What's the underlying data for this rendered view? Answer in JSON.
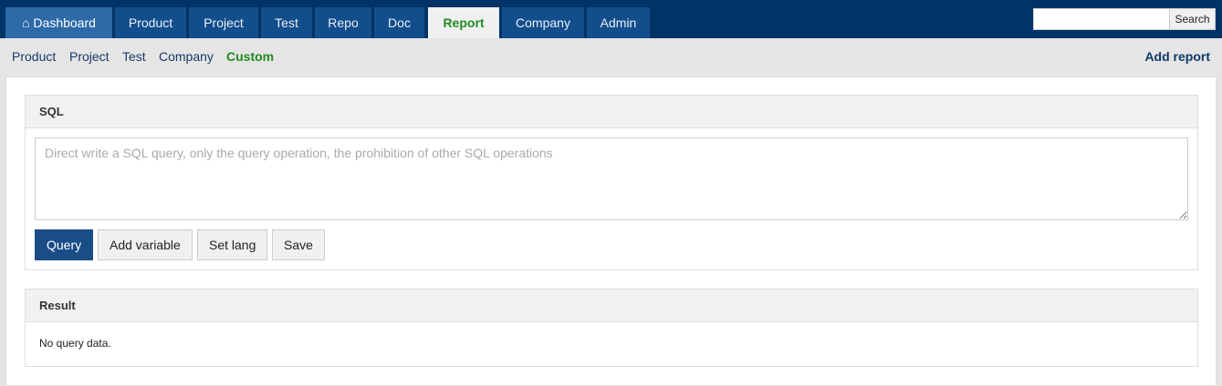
{
  "nav": {
    "tabs": [
      {
        "label": "Dashboard",
        "icon": "home-icon"
      },
      {
        "label": "Product"
      },
      {
        "label": "Project"
      },
      {
        "label": "Test"
      },
      {
        "label": "Repo"
      },
      {
        "label": "Doc"
      },
      {
        "label": "Report"
      },
      {
        "label": "Company"
      },
      {
        "label": "Admin"
      }
    ],
    "active": "Report",
    "search_button": "Search",
    "search_value": ""
  },
  "subnav": {
    "items": [
      "Product",
      "Project",
      "Test",
      "Company",
      "Custom"
    ],
    "active": "Custom",
    "add_report": "Add report"
  },
  "sql_panel": {
    "title": "SQL",
    "placeholder": "Direct write a SQL query, only the query operation, the prohibition of other SQL operations",
    "buttons": [
      "Query",
      "Add variable",
      "Set lang",
      "Save"
    ]
  },
  "result_panel": {
    "title": "Result",
    "message": "No query data."
  },
  "colors": {
    "nav_bg": "#003366",
    "tab_bg": "#134e8c",
    "active_green": "#228b22",
    "primary_button": "#1a4c86"
  }
}
